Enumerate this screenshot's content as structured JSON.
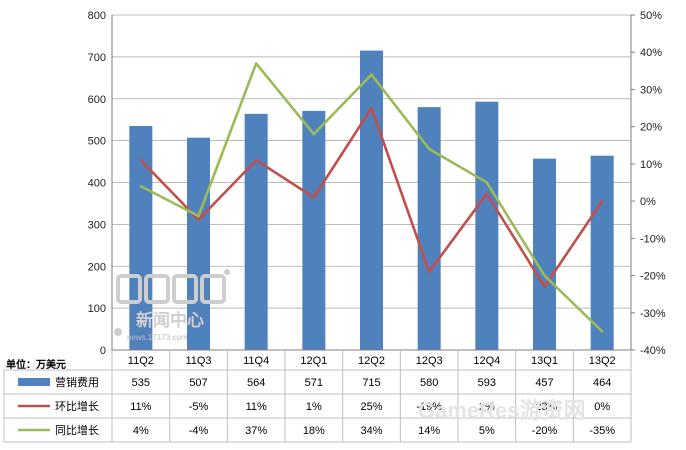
{
  "chart_data": {
    "type": "bar",
    "categories": [
      "11Q2",
      "11Q3",
      "11Q4",
      "12Q1",
      "12Q2",
      "12Q3",
      "12Q4",
      "13Q1",
      "13Q2"
    ],
    "unit_label": "单位：万美元",
    "left_axis": {
      "ylim": [
        0,
        800
      ],
      "ticks": [
        "0",
        "100",
        "200",
        "300",
        "400",
        "500",
        "600",
        "700",
        "800"
      ]
    },
    "right_axis": {
      "ylim": [
        -40,
        50
      ],
      "ticks": [
        "-40%",
        "-30%",
        "-20%",
        "-10%",
        "0%",
        "10%",
        "20%",
        "30%",
        "40%",
        "50%"
      ]
    },
    "grid": true,
    "legend_placement": "data-table-below",
    "series": [
      {
        "name": "营销费用",
        "type": "bar",
        "axis": "left",
        "color": "#4f81bd",
        "values": [
          535,
          507,
          564,
          571,
          715,
          580,
          593,
          457,
          464
        ],
        "labels": [
          "535",
          "507",
          "564",
          "571",
          "715",
          "580",
          "593",
          "457",
          "464"
        ]
      },
      {
        "name": "环比增长",
        "type": "line",
        "axis": "right",
        "color": "#c0504d",
        "values": [
          11,
          -5,
          11,
          1,
          25,
          -19,
          2,
          -23,
          0
        ],
        "labels": [
          "11%",
          "-5%",
          "11%",
          "1%",
          "25%",
          "-19%",
          "2%",
          "-23%",
          "0%"
        ]
      },
      {
        "name": "同比增长",
        "type": "line",
        "axis": "right",
        "color": "#9bbb59",
        "values": [
          4,
          -4,
          37,
          18,
          34,
          14,
          5,
          -20,
          -35
        ],
        "labels": [
          "4%",
          "-4%",
          "37%",
          "18%",
          "34%",
          "14%",
          "5%",
          "-20%",
          "-35%"
        ]
      }
    ]
  },
  "watermarks": {
    "logo_text": "新闻中心",
    "logo_url": "news.17173.com",
    "corner": "GameRes游资网"
  }
}
